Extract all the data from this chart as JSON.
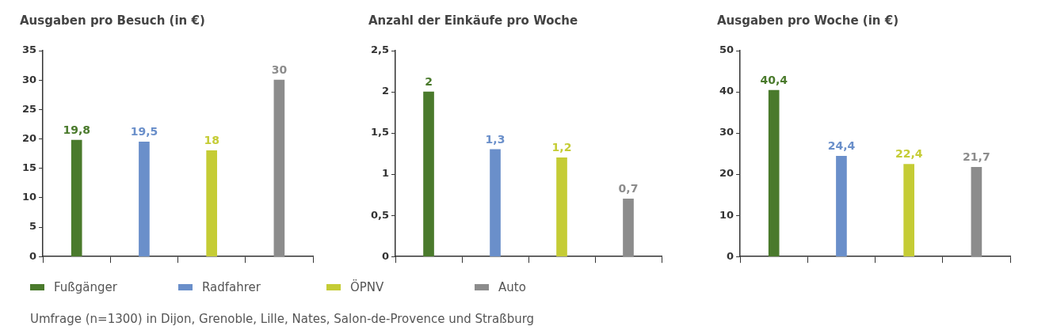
{
  "chart_data": [
    {
      "type": "bar",
      "title": "Ausgaben pro Besuch (in €)",
      "categories": [
        null,
        null,
        null,
        null
      ],
      "stacked": true,
      "series": [
        {
          "name": "Fußgänger",
          "color": "#4a7a2c",
          "values": [
            19.8,
            null,
            null,
            null
          ],
          "value_labels": [
            "19,8",
            null,
            null,
            null
          ]
        },
        {
          "name": "Radfahrer",
          "color": "#6a8fca",
          "values": [
            null,
            19.5,
            null,
            null
          ],
          "value_labels": [
            null,
            "19,5",
            null,
            null
          ]
        },
        {
          "name": "ÖPNV",
          "color": "#c5cc35",
          "values": [
            null,
            null,
            18,
            null
          ],
          "value_labels": [
            null,
            null,
            "18",
            null
          ]
        },
        {
          "name": "Auto",
          "color": "#8c8c8c",
          "values": [
            null,
            null,
            null,
            30
          ],
          "value_labels": [
            null,
            null,
            null,
            "30"
          ]
        }
      ],
      "ylim": [
        0,
        35
      ],
      "yticks": [
        0,
        5,
        10,
        15,
        20,
        25,
        30,
        35
      ],
      "grid": false,
      "tick_labels": "y",
      "legend": "bottom",
      "annotations": [
        "Umfrage (n=1300) in Dijon, Grenoble, Lille, Nates, Salon-de-Provence und Straßburg"
      ]
    },
    {
      "type": "bar",
      "title": "Anzahl der Einkäufe pro Woche",
      "categories": [
        null,
        null,
        null,
        null
      ],
      "stacked": true,
      "series": [
        {
          "color": "#4a7a2c",
          "values": [
            2,
            null,
            null,
            null
          ],
          "value_labels": [
            "2",
            null,
            null,
            null
          ]
        },
        {
          "color": "#6a8fca",
          "values": [
            null,
            1.3,
            null,
            null
          ],
          "value_labels": [
            null,
            "1,3",
            null,
            null
          ]
        },
        {
          "color": "#c5cc35",
          "values": [
            null,
            null,
            1.2,
            null
          ],
          "value_labels": [
            null,
            null,
            "1,2",
            null
          ]
        },
        {
          "color": "#8c8c8c",
          "values": [
            null,
            null,
            null,
            0.7
          ],
          "value_labels": [
            null,
            null,
            null,
            "0,7"
          ]
        }
      ],
      "ylim": [
        0,
        2.5
      ],
      "yticks": [
        0,
        {
          "value": 0.5,
          "label": "0,5"
        },
        1,
        {
          "value": 1.5,
          "label": "1,5"
        },
        2,
        {
          "value": 2.5,
          "label": "2,5"
        }
      ],
      "grid": false,
      "tick_labels": "y"
    },
    {
      "type": "bar",
      "title": "Ausgaben pro Woche (in €)",
      "categories": [
        null,
        null,
        null,
        null
      ],
      "stacked": true,
      "series": [
        {
          "color": "#4a7a2c",
          "values": [
            40.4,
            null,
            null,
            null
          ],
          "value_labels": [
            "40,4",
            null,
            null,
            null
          ]
        },
        {
          "color": "#6a8fca",
          "values": [
            null,
            24.4,
            null,
            null
          ],
          "value_labels": [
            null,
            "24,4",
            null,
            null
          ]
        },
        {
          "color": "#c5cc35",
          "values": [
            null,
            null,
            22.4,
            null
          ],
          "value_labels": [
            null,
            null,
            "22,4",
            null
          ]
        },
        {
          "color": "#8c8c8c",
          "values": [
            null,
            null,
            null,
            21.7
          ],
          "value_labels": [
            null,
            null,
            null,
            "21,7"
          ]
        }
      ],
      "ylim": [
        0,
        50
      ],
      "yticks": [
        0,
        10,
        20,
        30,
        40,
        50
      ],
      "grid": false,
      "tick_labels": "y"
    }
  ]
}
